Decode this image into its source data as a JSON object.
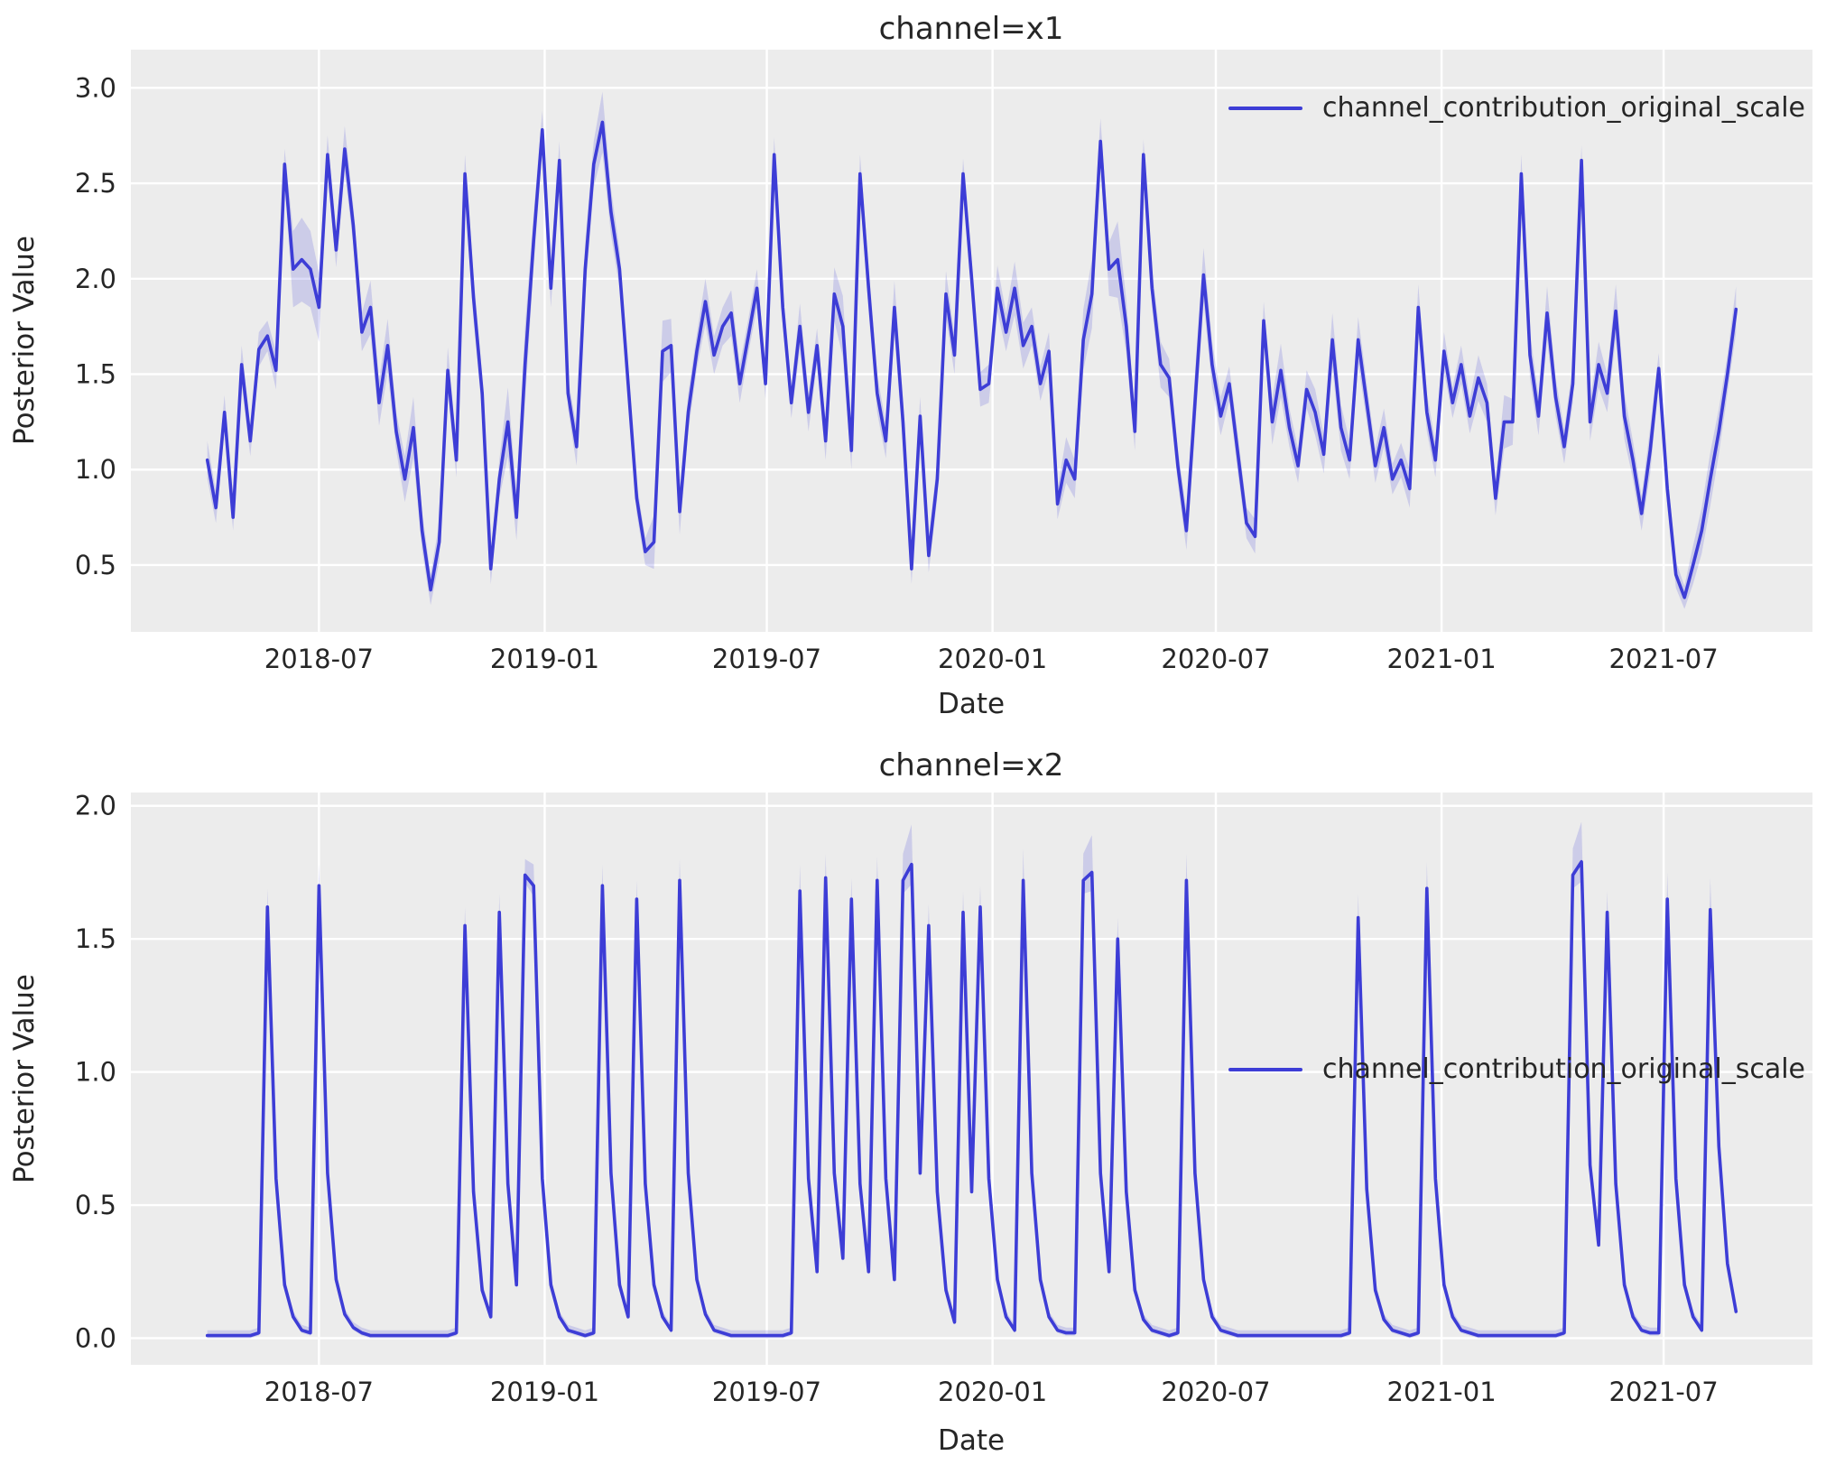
{
  "style": {
    "figure_background": "#ffffff",
    "plot_background": "#ececec",
    "grid_color": "#ffffff",
    "text_color": "#262626",
    "line_color": "#3d3dd6",
    "band_color": "rgba(61,61,214,0.18)"
  },
  "chart_data": [
    {
      "type": "line",
      "title": "channel=x1",
      "xlabel": "Date",
      "ylabel": "Posterior Value",
      "legend_label": "channel_contribution_original_scale",
      "legend_loc": "upper right",
      "grid": true,
      "x_start_date": "2018-04-01",
      "x_freq_days": 7,
      "xlim_weeks": [
        -8.9,
        186.9
      ],
      "ylim": [
        0.15,
        3.2
      ],
      "yticks": [
        0.5,
        1.0,
        1.5,
        2.0,
        2.5,
        3.0
      ],
      "xtick_dates": [
        "2018-07-01",
        "2019-01-01",
        "2019-07-01",
        "2020-01-01",
        "2020-07-01",
        "2021-01-01",
        "2021-07-01"
      ],
      "xtick_labels": [
        "2018-07",
        "2019-01",
        "2019-07",
        "2020-01",
        "2020-07",
        "2021-01",
        "2021-07"
      ],
      "band_lower_factor": 1.0,
      "series": [
        {
          "name": "channel_contribution_original_scale",
          "mean": [
            1.05,
            0.8,
            1.3,
            0.75,
            1.55,
            1.15,
            1.63,
            1.7,
            1.52,
            2.6,
            2.05,
            2.1,
            2.05,
            1.85,
            2.65,
            2.15,
            2.68,
            2.28,
            1.72,
            1.85,
            1.35,
            1.65,
            1.2,
            0.95,
            1.22,
            0.68,
            0.37,
            0.62,
            1.52,
            1.05,
            2.55,
            1.9,
            1.4,
            0.48,
            0.95,
            1.25,
            0.75,
            1.55,
            2.2,
            2.78,
            1.95,
            2.62,
            1.4,
            1.12,
            2.05,
            2.6,
            2.82,
            2.35,
            2.05,
            1.45,
            0.85,
            0.57,
            0.62,
            1.62,
            1.65,
            0.78,
            1.3,
            1.62,
            1.88,
            1.6,
            1.75,
            1.82,
            1.45,
            1.7,
            1.95,
            1.45,
            2.65,
            1.85,
            1.35,
            1.75,
            1.3,
            1.65,
            1.15,
            1.92,
            1.75,
            1.1,
            2.55,
            1.95,
            1.4,
            1.15,
            1.85,
            1.25,
            0.48,
            1.28,
            0.55,
            0.95,
            1.92,
            1.6,
            2.55,
            2.0,
            1.42,
            1.45,
            1.95,
            1.72,
            1.95,
            1.65,
            1.75,
            1.45,
            1.62,
            0.82,
            1.05,
            0.95,
            1.68,
            1.92,
            2.72,
            2.05,
            2.1,
            1.75,
            1.2,
            2.65,
            1.95,
            1.55,
            1.48,
            1.02,
            0.68,
            1.35,
            2.02,
            1.55,
            1.28,
            1.45,
            1.08,
            0.72,
            0.65,
            1.78,
            1.25,
            1.52,
            1.22,
            1.02,
            1.42,
            1.3,
            1.08,
            1.68,
            1.22,
            1.05,
            1.68,
            1.35,
            1.02,
            1.22,
            0.95,
            1.05,
            0.9,
            1.85,
            1.3,
            1.05,
            1.62,
            1.35,
            1.55,
            1.28,
            1.48,
            1.35,
            0.85,
            1.25,
            1.25,
            2.55,
            1.6,
            1.28,
            1.82,
            1.38,
            1.12,
            1.45,
            2.62,
            1.25,
            1.55,
            1.4,
            1.83,
            1.28,
            1.05,
            0.77,
            1.1,
            1.53,
            0.9,
            0.45,
            0.33,
            0.5,
            0.68,
            0.95,
            1.2,
            1.5,
            1.84
          ],
          "band_halfwidth": [
            0.1,
            0.08,
            0.09,
            0.07,
            0.1,
            0.08,
            0.09,
            0.08,
            0.1,
            0.08,
            0.2,
            0.22,
            0.2,
            0.18,
            0.1,
            0.09,
            0.12,
            0.1,
            0.1,
            0.14,
            0.12,
            0.14,
            0.1,
            0.12,
            0.16,
            0.1,
            0.08,
            0.1,
            0.12,
            0.09,
            0.1,
            0.12,
            0.1,
            0.08,
            0.1,
            0.18,
            0.12,
            0.2,
            0.14,
            0.1,
            0.1,
            0.1,
            0.08,
            0.1,
            0.14,
            0.12,
            0.16,
            0.12,
            0.1,
            0.1,
            0.08,
            0.07,
            0.14,
            0.16,
            0.14,
            0.12,
            0.1,
            0.09,
            0.12,
            0.1,
            0.1,
            0.12,
            0.1,
            0.09,
            0.1,
            0.08,
            0.09,
            0.1,
            0.08,
            0.12,
            0.1,
            0.09,
            0.1,
            0.14,
            0.16,
            0.1,
            0.1,
            0.12,
            0.1,
            0.09,
            0.14,
            0.12,
            0.08,
            0.1,
            0.09,
            0.1,
            0.12,
            0.1,
            0.08,
            0.1,
            0.09,
            0.1,
            0.12,
            0.1,
            0.14,
            0.12,
            0.1,
            0.09,
            0.1,
            0.08,
            0.12,
            0.1,
            0.16,
            0.18,
            0.12,
            0.14,
            0.2,
            0.14,
            0.1,
            0.08,
            0.1,
            0.12,
            0.1,
            0.09,
            0.1,
            0.16,
            0.14,
            0.12,
            0.1,
            0.09,
            0.1,
            0.08,
            0.09,
            0.1,
            0.12,
            0.14,
            0.1,
            0.09,
            0.1,
            0.12,
            0.1,
            0.14,
            0.12,
            0.1,
            0.12,
            0.1,
            0.09,
            0.1,
            0.08,
            0.09,
            0.1,
            0.12,
            0.1,
            0.09,
            0.1,
            0.08,
            0.1,
            0.09,
            0.12,
            0.1,
            0.09,
            0.14,
            0.12,
            0.1,
            0.12,
            0.1,
            0.14,
            0.1,
            0.09,
            0.1,
            0.08,
            0.1,
            0.12,
            0.1,
            0.14,
            0.12,
            0.1,
            0.09,
            0.12,
            0.08,
            0.09,
            0.07,
            0.06,
            0.1,
            0.12,
            0.14,
            0.12,
            0.1,
            0.12
          ]
        }
      ]
    },
    {
      "type": "line",
      "title": "channel=x2",
      "xlabel": "Date",
      "ylabel": "Posterior Value",
      "legend_label": "channel_contribution_original_scale",
      "legend_loc": "center right",
      "grid": true,
      "x_start_date": "2018-04-01",
      "x_freq_days": 7,
      "xlim_weeks": [
        -8.9,
        186.9
      ],
      "ylim": [
        -0.1,
        2.05
      ],
      "yticks": [
        0.0,
        0.5,
        1.0,
        1.5,
        2.0
      ],
      "xtick_dates": [
        "2018-07-01",
        "2019-01-01",
        "2019-07-01",
        "2020-01-01",
        "2020-07-01",
        "2021-01-01",
        "2021-07-01"
      ],
      "xtick_labels": [
        "2018-07",
        "2019-01",
        "2019-07",
        "2020-01",
        "2020-07",
        "2021-01",
        "2021-07"
      ],
      "band_lower_factor": 0.5,
      "series": [
        {
          "name": "channel_contribution_original_scale",
          "mean": [
            0.01,
            0.01,
            0.01,
            0.01,
            0.01,
            0.01,
            0.02,
            1.62,
            0.6,
            0.2,
            0.08,
            0.03,
            0.02,
            1.7,
            0.62,
            0.22,
            0.09,
            0.04,
            0.02,
            0.01,
            0.01,
            0.01,
            0.01,
            0.01,
            0.01,
            0.01,
            0.01,
            0.01,
            0.01,
            0.02,
            1.55,
            0.55,
            0.18,
            0.08,
            1.6,
            0.58,
            0.2,
            1.74,
            1.7,
            0.6,
            0.2,
            0.08,
            0.03,
            0.02,
            0.01,
            0.02,
            1.7,
            0.62,
            0.2,
            0.08,
            1.65,
            0.58,
            0.2,
            0.08,
            0.03,
            1.72,
            0.62,
            0.22,
            0.09,
            0.03,
            0.02,
            0.01,
            0.01,
            0.01,
            0.01,
            0.01,
            0.01,
            0.01,
            0.02,
            1.68,
            0.6,
            0.25,
            1.73,
            0.62,
            0.3,
            1.65,
            0.58,
            0.25,
            1.72,
            0.6,
            0.22,
            1.72,
            1.78,
            0.62,
            1.55,
            0.55,
            0.18,
            0.06,
            1.6,
            0.55,
            1.62,
            0.6,
            0.22,
            0.08,
            0.03,
            1.72,
            0.62,
            0.22,
            0.08,
            0.03,
            0.02,
            0.02,
            1.72,
            1.75,
            0.62,
            0.25,
            1.5,
            0.55,
            0.18,
            0.07,
            0.03,
            0.02,
            0.01,
            0.02,
            1.72,
            0.62,
            0.22,
            0.08,
            0.03,
            0.02,
            0.01,
            0.01,
            0.01,
            0.01,
            0.01,
            0.01,
            0.01,
            0.01,
            0.01,
            0.01,
            0.01,
            0.01,
            0.01,
            0.02,
            1.58,
            0.56,
            0.18,
            0.07,
            0.03,
            0.02,
            0.01,
            0.02,
            1.69,
            0.6,
            0.2,
            0.08,
            0.03,
            0.02,
            0.01,
            0.01,
            0.01,
            0.01,
            0.01,
            0.01,
            0.01,
            0.01,
            0.01,
            0.01,
            0.02,
            1.74,
            1.79,
            0.65,
            0.35,
            1.6,
            0.58,
            0.2,
            0.08,
            0.03,
            0.02,
            0.02,
            1.65,
            0.6,
            0.2,
            0.08,
            0.03,
            1.61,
            0.72,
            0.28,
            0.1
          ],
          "band_halfwidth": [
            0.02,
            0.02,
            0.02,
            0.02,
            0.02,
            0.02,
            0.02,
            0.07,
            0.04,
            0.03,
            0.02,
            0.02,
            0.02,
            0.08,
            0.04,
            0.03,
            0.02,
            0.02,
            0.02,
            0.02,
            0.02,
            0.02,
            0.02,
            0.02,
            0.02,
            0.02,
            0.02,
            0.02,
            0.02,
            0.02,
            0.07,
            0.04,
            0.03,
            0.02,
            0.07,
            0.04,
            0.03,
            0.06,
            0.08,
            0.04,
            0.03,
            0.02,
            0.02,
            0.02,
            0.02,
            0.02,
            0.08,
            0.04,
            0.03,
            0.02,
            0.07,
            0.04,
            0.03,
            0.02,
            0.02,
            0.08,
            0.04,
            0.03,
            0.02,
            0.02,
            0.02,
            0.02,
            0.02,
            0.02,
            0.02,
            0.02,
            0.02,
            0.02,
            0.02,
            0.1,
            0.05,
            0.03,
            0.09,
            0.05,
            0.03,
            0.08,
            0.04,
            0.03,
            0.09,
            0.05,
            0.03,
            0.1,
            0.15,
            0.05,
            0.08,
            0.04,
            0.03,
            0.02,
            0.08,
            0.04,
            0.08,
            0.04,
            0.03,
            0.02,
            0.02,
            0.12,
            0.05,
            0.03,
            0.02,
            0.02,
            0.02,
            0.02,
            0.1,
            0.14,
            0.05,
            0.03,
            0.08,
            0.04,
            0.03,
            0.02,
            0.02,
            0.02,
            0.02,
            0.02,
            0.1,
            0.05,
            0.03,
            0.02,
            0.02,
            0.02,
            0.02,
            0.02,
            0.02,
            0.02,
            0.02,
            0.02,
            0.02,
            0.02,
            0.02,
            0.02,
            0.02,
            0.02,
            0.02,
            0.02,
            0.09,
            0.04,
            0.03,
            0.02,
            0.02,
            0.02,
            0.02,
            0.02,
            0.1,
            0.05,
            0.03,
            0.02,
            0.02,
            0.02,
            0.02,
            0.02,
            0.02,
            0.02,
            0.02,
            0.02,
            0.02,
            0.02,
            0.02,
            0.02,
            0.02,
            0.1,
            0.15,
            0.05,
            0.03,
            0.08,
            0.04,
            0.03,
            0.02,
            0.02,
            0.02,
            0.02,
            0.1,
            0.05,
            0.03,
            0.02,
            0.02,
            0.12,
            0.06,
            0.04,
            0.03
          ]
        }
      ]
    }
  ]
}
